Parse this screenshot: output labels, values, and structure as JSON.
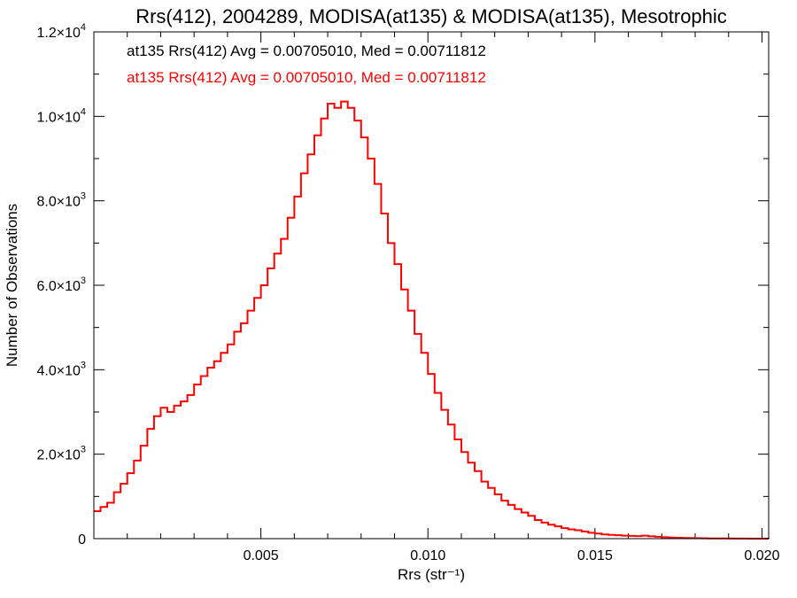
{
  "chart_data": {
    "type": "line",
    "title": "Rrs(412), 2004289, MODISA(at135) & MODISA(at135), Mesotrophic",
    "xlabel": "Rrs (str⁻¹)",
    "ylabel": "Number of Observations",
    "xlim": [
      0.0,
      0.0202
    ],
    "ylim": [
      0,
      12000
    ],
    "xticks": [
      {
        "value": 0.005,
        "label": "0.005"
      },
      {
        "value": 0.01,
        "label": "0.010"
      },
      {
        "value": 0.015,
        "label": "0.015"
      },
      {
        "value": 0.02,
        "label": "0.020"
      }
    ],
    "yticks": [
      {
        "value": 0,
        "mant": "0",
        "exp": ""
      },
      {
        "value": 2000,
        "mant": "2.0×10",
        "exp": "3"
      },
      {
        "value": 4000,
        "mant": "4.0×10",
        "exp": "3"
      },
      {
        "value": 6000,
        "mant": "6.0×10",
        "exp": "3"
      },
      {
        "value": 8000,
        "mant": "8.0×10",
        "exp": "3"
      },
      {
        "value": 10000,
        "mant": "1.0×10",
        "exp": "4"
      },
      {
        "value": 12000,
        "mant": "1.2×10",
        "exp": "4"
      }
    ],
    "annotations": [
      {
        "text": "at135 Rrs(412) Avg = 0.00705010, Med = 0.00711812",
        "color": "#000000"
      },
      {
        "text": "at135 Rrs(412) Avg = 0.00705010, Med = 0.00711812",
        "color": "#ff0000"
      }
    ],
    "grid": false,
    "series": [
      {
        "color": "#ff0000",
        "x": [
          0.0,
          0.0002,
          0.0004,
          0.0006,
          0.0008,
          0.001,
          0.0012,
          0.0014,
          0.0016,
          0.0018,
          0.002,
          0.0022,
          0.0024,
          0.0026,
          0.0028,
          0.003,
          0.0032,
          0.0034,
          0.0036,
          0.0038,
          0.004,
          0.0042,
          0.0044,
          0.0046,
          0.0048,
          0.005,
          0.0052,
          0.0054,
          0.0056,
          0.0058,
          0.006,
          0.0062,
          0.0064,
          0.0066,
          0.0068,
          0.007,
          0.0072,
          0.0074,
          0.0076,
          0.0078,
          0.008,
          0.0082,
          0.0084,
          0.0086,
          0.0088,
          0.009,
          0.0092,
          0.0094,
          0.0096,
          0.0098,
          0.01,
          0.0102,
          0.0104,
          0.0106,
          0.0108,
          0.011,
          0.0112,
          0.0114,
          0.0116,
          0.0118,
          0.012,
          0.0122,
          0.0124,
          0.0126,
          0.0128,
          0.013,
          0.0132,
          0.0134,
          0.0136,
          0.0138,
          0.014,
          0.0142,
          0.0144,
          0.0146,
          0.0148,
          0.015,
          0.0152,
          0.0154,
          0.0156,
          0.0158,
          0.016,
          0.0162,
          0.0164,
          0.0166,
          0.0168,
          0.017,
          0.0172,
          0.0174,
          0.0176,
          0.0178,
          0.018,
          0.0182,
          0.0184,
          0.0186,
          0.0188,
          0.019,
          0.0192,
          0.0194,
          0.0196,
          0.0198,
          0.02,
          0.0202
        ],
        "y": [
          650,
          750,
          850,
          1100,
          1300,
          1550,
          1850,
          2200,
          2600,
          2900,
          3100,
          3000,
          3150,
          3250,
          3400,
          3650,
          3850,
          4050,
          4200,
          4400,
          4600,
          4900,
          5100,
          5400,
          5700,
          6000,
          6400,
          6750,
          7100,
          7600,
          8100,
          8650,
          9100,
          9550,
          9950,
          10300,
          10200,
          10350,
          10200,
          9900,
          9500,
          9000,
          8400,
          7700,
          7000,
          6500,
          5900,
          5400,
          4850,
          4400,
          3900,
          3450,
          3050,
          2700,
          2350,
          2050,
          1800,
          1600,
          1350,
          1200,
          1050,
          900,
          800,
          700,
          620,
          540,
          440,
          380,
          330,
          290,
          250,
          220,
          200,
          170,
          140,
          120,
          100,
          90,
          80,
          70,
          65,
          60,
          70,
          55,
          45,
          35,
          25,
          20,
          15,
          12,
          10,
          8,
          6,
          5,
          4,
          3,
          2,
          2,
          1,
          1,
          1,
          0
        ]
      }
    ]
  }
}
